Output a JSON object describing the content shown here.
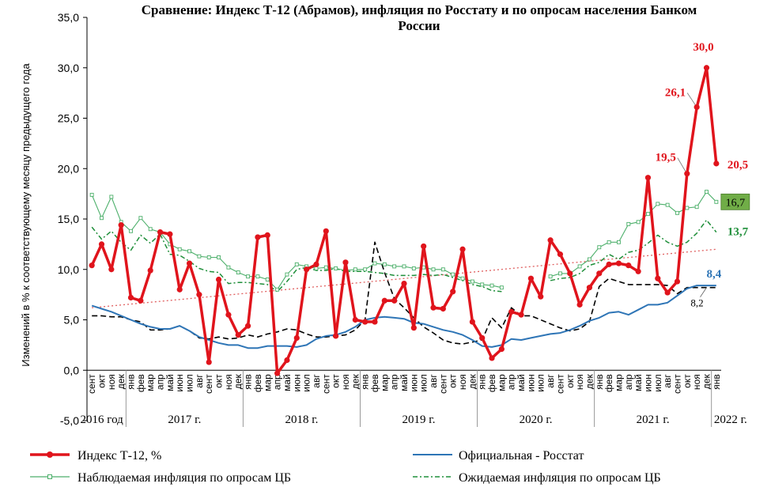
{
  "chart_data": {
    "type": "line",
    "title": "Сравнение: Индекс Т-12 (Абрамов), инфляция по Росстату и по опросам населения Банком России",
    "title_lines": [
      "Сравнение: Индекс Т-12 (Абрамов), инфляция по Росстату и по опросам населения Банком",
      "России"
    ],
    "ylabel": "Изменений в % к соответствующему месяцу предыдущего года",
    "ylim": [
      -5,
      35
    ],
    "yticks": [
      -5,
      0,
      5,
      10,
      15,
      20,
      25,
      30,
      35
    ],
    "ytick_labels": [
      "-5,0",
      "0,0",
      "5,0",
      "10,0",
      "15,0",
      "20,0",
      "25,0",
      "30,0",
      "35,0"
    ],
    "months": [
      "сент",
      "окт",
      "ноя",
      "дек",
      "янв",
      "фев",
      "мар",
      "апр",
      "май",
      "июн",
      "июл",
      "авг",
      "сент",
      "окт",
      "ноя",
      "дек",
      "янв",
      "фев",
      "мар",
      "апр",
      "май",
      "июн",
      "июл",
      "авг",
      "сент",
      "окт",
      "ноя",
      "дек",
      "янв",
      "фев",
      "мар",
      "апр",
      "май",
      "июн",
      "июл",
      "авг",
      "сент",
      "окт",
      "ноя",
      "дек",
      "янв",
      "фев",
      "мар",
      "апр",
      "май",
      "июн",
      "июл",
      "авг",
      "сент",
      "окт",
      "ноя",
      "дек",
      "янв",
      "фев",
      "мар",
      "апр",
      "май",
      "июн",
      "июл",
      "авг",
      "сент",
      "окт",
      "ноя",
      "дек",
      "янв"
    ],
    "years": [
      {
        "label": "2016 год",
        "start": 0,
        "end": 3
      },
      {
        "label": "2017 г.",
        "start": 4,
        "end": 15
      },
      {
        "label": "2018 г.",
        "start": 16,
        "end": 27
      },
      {
        "label": "2019 г.",
        "start": 28,
        "end": 39
      },
      {
        "label": "2020 г.",
        "start": 40,
        "end": 51
      },
      {
        "label": "2021 г.",
        "start": 52,
        "end": 63
      },
      {
        "label": "2022 г.",
        "start": 64,
        "end": 64
      }
    ],
    "grid": false,
    "legend_position": "bottom",
    "series": [
      {
        "name": "Индекс Т-12, %",
        "color": "#e0141c",
        "style": "thick-markers",
        "values": [
          10.4,
          12.5,
          10.0,
          14.4,
          7.2,
          6.9,
          9.9,
          13.7,
          13.5,
          8.0,
          10.6,
          7.5,
          0.8,
          9.0,
          5.5,
          3.5,
          4.4,
          13.2,
          13.4,
          -0.3,
          1.0,
          3.2,
          10.0,
          10.5,
          13.8,
          3.4,
          10.7,
          5.0,
          4.8,
          4.8,
          6.9,
          6.9,
          8.6,
          4.2,
          12.3,
          6.2,
          6.1,
          7.8,
          12.0,
          4.8,
          3.2,
          1.2,
          2.1,
          5.8,
          5.5,
          9.1,
          7.3,
          12.9,
          11.5,
          9.6,
          6.5,
          8.2,
          9.6,
          10.5,
          10.6,
          10.4,
          9.8,
          19.1,
          9.1,
          7.7,
          8.8,
          19.5,
          26.1,
          30.0,
          20.5
        ]
      },
      {
        "name": "Официальная - Росстат",
        "color": "#2e75b6",
        "style": "solid",
        "values": [
          6.4,
          6.1,
          5.8,
          5.4,
          5.0,
          4.6,
          4.3,
          4.1,
          4.1,
          4.4,
          3.9,
          3.3,
          3.0,
          2.7,
          2.5,
          2.5,
          2.2,
          2.2,
          2.4,
          2.4,
          2.4,
          2.3,
          2.5,
          3.1,
          3.4,
          3.5,
          3.8,
          4.3,
          5.0,
          5.2,
          5.3,
          5.2,
          5.1,
          4.7,
          4.6,
          4.3,
          4.0,
          3.8,
          3.5,
          3.0,
          2.4,
          2.3,
          2.5,
          3.1,
          3.0,
          3.2,
          3.4,
          3.6,
          3.7,
          4.0,
          4.4,
          4.9,
          5.2,
          5.7,
          5.8,
          5.5,
          6.0,
          6.5,
          6.5,
          6.7,
          7.4,
          8.1,
          8.4,
          8.4,
          8.4
        ]
      },
      {
        "name": "Наблюдаемая инфляция по опросам ЦБ",
        "color": "#4caf6a",
        "style": "thin-markers",
        "values": [
          17.4,
          15.1,
          17.2,
          14.7,
          13.8,
          15.1,
          14.0,
          13.7,
          12.5,
          12.0,
          11.8,
          11.3,
          11.2,
          11.2,
          10.2,
          9.7,
          9.3,
          9.3,
          9.0,
          8.0,
          9.5,
          10.5,
          10.3,
          10.1,
          10.2,
          10.1,
          9.9,
          10.0,
          10.0,
          10.6,
          10.5,
          10.3,
          10.3,
          10.1,
          10.2,
          10.0,
          10.0,
          9.5,
          9.1,
          8.8,
          8.5,
          8.4,
          8.2,
          null,
          null,
          null,
          null,
          9.3,
          9.6,
          9.6,
          10.3,
          11.0,
          12.2,
          12.7,
          12.7,
          14.5,
          14.7,
          15.5,
          16.5,
          16.4,
          15.6,
          16.1,
          16.2,
          17.7,
          16.7
        ]
      },
      {
        "name": "Ожидаемая инфляция по опросам ЦБ",
        "color": "#1f8f3a",
        "style": "dash-dot",
        "values": [
          14.2,
          13.0,
          13.8,
          12.7,
          11.9,
          13.4,
          12.6,
          13.5,
          11.5,
          11.4,
          10.8,
          10.1,
          9.8,
          9.7,
          8.6,
          8.7,
          8.7,
          8.6,
          8.5,
          7.8,
          8.8,
          10.0,
          10.2,
          9.9,
          9.9,
          10.1,
          9.8,
          9.8,
          9.8,
          9.7,
          9.6,
          9.4,
          9.4,
          9.4,
          9.5,
          9.4,
          9.5,
          9.2,
          8.9,
          8.5,
          8.3,
          7.9,
          7.8,
          null,
          null,
          null,
          null,
          8.9,
          9.1,
          9.2,
          9.6,
          10.4,
          10.7,
          11.5,
          11.0,
          11.7,
          11.9,
          12.6,
          13.4,
          12.7,
          12.3,
          12.7,
          13.6,
          14.9,
          13.7
        ]
      },
      {
        "name": "",
        "color": "#000000",
        "style": "dashed",
        "values": [
          5.4,
          5.4,
          5.3,
          5.3,
          5.0,
          4.8,
          4.0,
          4.0,
          4.1,
          4.4,
          3.9,
          3.2,
          3.1,
          3.3,
          3.1,
          3.2,
          3.5,
          3.3,
          3.6,
          3.8,
          4.1,
          4.0,
          3.6,
          3.3,
          3.3,
          3.4,
          3.5,
          4.0,
          5.0,
          12.7,
          9.7,
          7.1,
          6.2,
          5.2,
          4.3,
          3.7,
          3.0,
          2.7,
          2.6,
          2.8,
          3.0,
          5.2,
          4.2,
          6.2,
          5.4,
          5.4,
          5.0,
          4.6,
          4.2,
          3.9,
          4.1,
          4.8,
          8.3,
          9.1,
          8.8,
          8.5,
          8.5,
          8.5,
          8.5,
          8.4,
          7.6,
          8.2,
          8.2,
          8.2,
          8.2
        ]
      }
    ],
    "trendline": {
      "color": "#e06060",
      "style": "dotted",
      "start": [
        0,
        6.2
      ],
      "end": [
        64,
        12.0
      ]
    },
    "annotations": [
      {
        "text": "30,0",
        "index": 63,
        "value": 30.0,
        "color": "#e0141c"
      },
      {
        "text": "26,1",
        "index": 62,
        "value": 26.1,
        "color": "#e0141c"
      },
      {
        "text": "19,5",
        "index": 61,
        "value": 19.5,
        "color": "#e0141c"
      },
      {
        "text": "20,5",
        "index": 64,
        "value": 20.5,
        "color": "#e0141c"
      },
      {
        "text": "16,7",
        "index": 64,
        "value": 16.7,
        "color": "#000000",
        "box": "#70ad47"
      },
      {
        "text": "13,7",
        "index": 64,
        "value": 13.7,
        "color": "#1f8f3a"
      },
      {
        "text": "8,4",
        "index": 64,
        "value": 8.4,
        "color": "#2e75b6"
      },
      {
        "text": "8,2",
        "index": 63,
        "value": 8.2,
        "color": "#000000"
      }
    ]
  }
}
